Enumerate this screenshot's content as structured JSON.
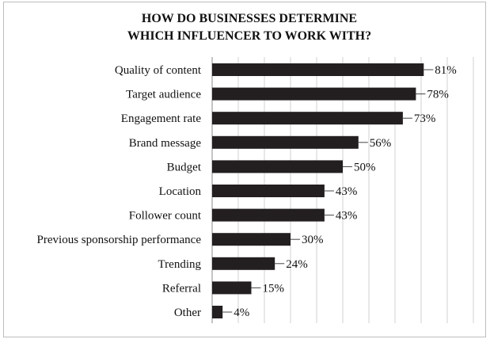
{
  "chart_data": {
    "type": "bar",
    "orientation": "horizontal",
    "title_lines": [
      "HOW DO BUSINESSES DETERMINE",
      "WHICH INFLUENCER TO WORK WITH?"
    ],
    "categories": [
      "Quality of content",
      "Target audience",
      "Engagement rate",
      "Brand message",
      "Budget",
      "Location",
      "Follower count",
      "Previous sponsorship performance",
      "Trending",
      "Referral",
      "Other"
    ],
    "values": [
      81,
      78,
      73,
      56,
      50,
      43,
      43,
      30,
      24,
      15,
      4
    ],
    "value_labels": [
      "81%",
      "78%",
      "73%",
      "56%",
      "50%",
      "43%",
      "43%",
      "30%",
      "24%",
      "15%",
      "4%"
    ],
    "xlim": [
      0,
      100
    ],
    "grid": true,
    "legend": "none",
    "bar_color": "#231f20",
    "grid_color": "#d0d0d0"
  }
}
